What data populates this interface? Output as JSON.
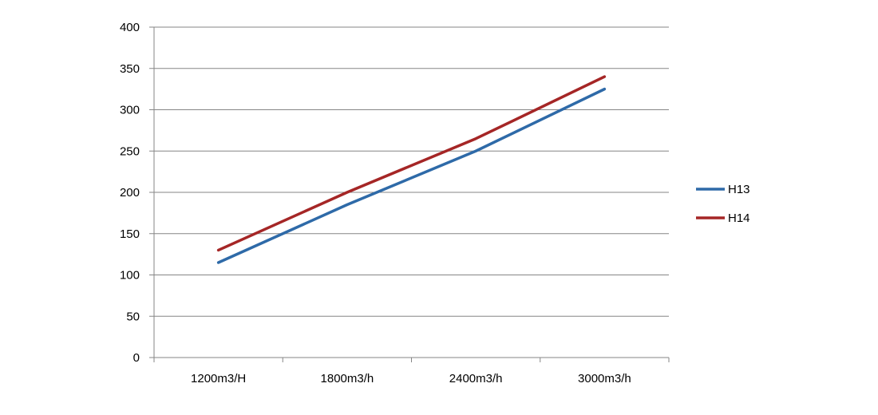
{
  "chart_data": {
    "type": "line",
    "title": "",
    "xlabel": "",
    "ylabel": "",
    "categories": [
      "1200m3/H",
      "1800m3/h",
      "2400m3/h",
      "3000m3/h"
    ],
    "series": [
      {
        "name": "H13",
        "values": [
          115,
          185,
          250,
          325
        ],
        "color": "#2e6aa8"
      },
      {
        "name": "H14",
        "values": [
          130,
          200,
          265,
          340
        ],
        "color": "#a52626"
      }
    ],
    "ylim": [
      0,
      400
    ],
    "yticks": [
      0,
      50,
      100,
      150,
      200,
      250,
      300,
      350,
      400
    ],
    "grid": true,
    "legend_position": "right"
  }
}
